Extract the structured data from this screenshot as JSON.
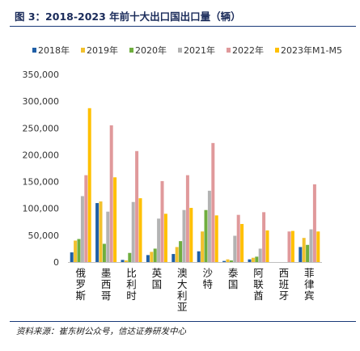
{
  "header": {
    "title": "图 3：2018-2023 年前十大出口国出口量（辆）"
  },
  "footer": {
    "source": "资料来源：崔东树公众号，信达证券研发中心"
  },
  "chart_data": {
    "type": "bar",
    "categories": [
      "俄罗斯",
      "墨西哥",
      "比利时",
      "英国",
      "澳大利亚",
      "沙特",
      "泰国",
      "阿联酋",
      "西班牙",
      "菲律宾"
    ],
    "series": [
      {
        "name": "2018年",
        "color": "#1f5fa6",
        "values": [
          18000,
          110000,
          4000,
          13000,
          15000,
          20000,
          2000,
          5000,
          0,
          28000
        ]
      },
      {
        "name": "2019年",
        "color": "#f2c12e",
        "values": [
          40000,
          113000,
          3000,
          19000,
          28000,
          57000,
          5000,
          8000,
          0,
          45000
        ]
      },
      {
        "name": "2020年",
        "color": "#6fae3e",
        "values": [
          43000,
          34000,
          17000,
          25000,
          39000,
          97000,
          3000,
          10000,
          0,
          32000
        ]
      },
      {
        "name": "2021年",
        "color": "#b3b3b3",
        "values": [
          123000,
          94000,
          112000,
          81000,
          97000,
          133000,
          49000,
          25000,
          0,
          61000
        ]
      },
      {
        "name": "2022年",
        "color": "#e0999b",
        "values": [
          162000,
          255000,
          207000,
          151000,
          162000,
          222000,
          88000,
          93000,
          57000,
          145000
        ]
      },
      {
        "name": "2023年M1-M5",
        "color": "#ffc000",
        "values": [
          287000,
          158000,
          119000,
          90000,
          101000,
          87000,
          71000,
          59000,
          58000,
          57000
        ]
      }
    ],
    "ylim": [
      0,
      350000
    ],
    "yticks": [
      "0",
      "50,000",
      "100,000",
      "150,000",
      "200,000",
      "250,000",
      "300,000",
      "350,000"
    ],
    "ytick_values": [
      0,
      50000,
      100000,
      150000,
      200000,
      250000,
      300000,
      350000
    ],
    "legend_position": "top",
    "grid": false
  }
}
